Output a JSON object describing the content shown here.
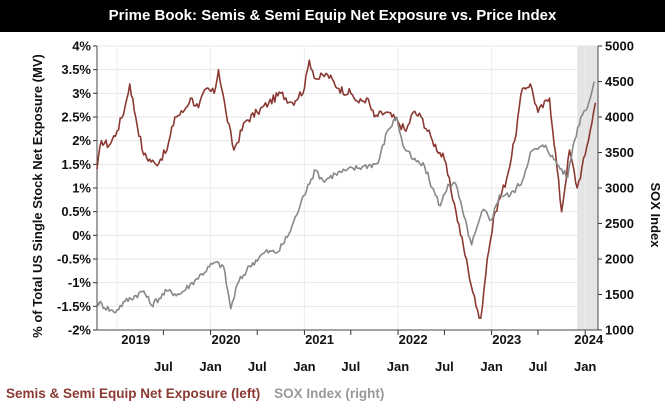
{
  "chart_data": {
    "type": "line",
    "title": "Prime Book: Semis & Semi Equip Net Exposure vs. Price Index",
    "ylabel_left": "% of Total US Single Stock Net Exposure (MV)",
    "ylabel_right": "SOX Index",
    "left_axis": {
      "min": -2,
      "max": 4,
      "ticks": [
        "-2%",
        "-1.5%",
        "-1%",
        "-0.5%",
        "0%",
        "0.5%",
        "1%",
        "1.5%",
        "2%",
        "2.5%",
        "3%",
        "3.5%",
        "4%"
      ]
    },
    "right_axis": {
      "min": 1000,
      "max": 5000,
      "ticks": [
        "1000",
        "1500",
        "2000",
        "2500",
        "3000",
        "3500",
        "4000",
        "4500",
        "5000"
      ]
    },
    "x_axis": {
      "start": "2018-10-15",
      "end": "2024-02-20",
      "months": [
        {
          "label": "Jul",
          "date": "2019-07-01"
        },
        {
          "label": "Jan",
          "date": "2020-01-01"
        },
        {
          "label": "Jul",
          "date": "2020-07-01"
        },
        {
          "label": "Jan",
          "date": "2021-01-01"
        },
        {
          "label": "Jul",
          "date": "2021-07-01"
        },
        {
          "label": "Jan",
          "date": "2022-01-01"
        },
        {
          "label": "Jul",
          "date": "2022-07-01"
        },
        {
          "label": "Jan",
          "date": "2023-01-01"
        },
        {
          "label": "Jul",
          "date": "2023-07-01"
        },
        {
          "label": "Jan",
          "date": "2024-01-01"
        }
      ],
      "years": [
        {
          "label": "2019",
          "date": "2019-03-15"
        },
        {
          "label": "2020",
          "date": "2020-03-01"
        },
        {
          "label": "2021",
          "date": "2021-03-01"
        },
        {
          "label": "2022",
          "date": "2022-03-01"
        },
        {
          "label": "2023",
          "date": "2023-03-01"
        },
        {
          "label": "2024",
          "date": "2024-01-15"
        }
      ]
    },
    "shaded_region": {
      "start": "2023-12-01",
      "end": "2024-02-20"
    },
    "grid": true,
    "legend_position": "bottom-left",
    "series": [
      {
        "name": "Semis & Semi Equip Net Exposure (left)",
        "axis": "left",
        "color": "#8b3a33",
        "points": [
          [
            "2018-10-15",
            1.4
          ],
          [
            "2018-11-01",
            2.0
          ],
          [
            "2018-12-01",
            1.9
          ],
          [
            "2019-01-01",
            2.2
          ],
          [
            "2019-02-01",
            2.7
          ],
          [
            "2019-02-20",
            3.2
          ],
          [
            "2019-03-15",
            2.5
          ],
          [
            "2019-04-15",
            1.7
          ],
          [
            "2019-06-01",
            1.5
          ],
          [
            "2019-07-15",
            1.8
          ],
          [
            "2019-08-15",
            2.5
          ],
          [
            "2019-09-15",
            2.6
          ],
          [
            "2019-10-15",
            2.9
          ],
          [
            "2019-11-15",
            2.7
          ],
          [
            "2019-12-15",
            3.1
          ],
          [
            "2020-01-15",
            3.0
          ],
          [
            "2020-02-01",
            3.5
          ],
          [
            "2020-03-01",
            2.6
          ],
          [
            "2020-04-01",
            1.8
          ],
          [
            "2020-05-15",
            2.4
          ],
          [
            "2020-07-01",
            2.6
          ],
          [
            "2020-08-15",
            2.8
          ],
          [
            "2020-10-01",
            3.0
          ],
          [
            "2020-11-15",
            2.8
          ],
          [
            "2021-01-01",
            3.1
          ],
          [
            "2021-01-20",
            3.7
          ],
          [
            "2021-02-15",
            3.3
          ],
          [
            "2021-04-01",
            3.4
          ],
          [
            "2021-05-15",
            3.1
          ],
          [
            "2021-07-01",
            3.0
          ],
          [
            "2021-08-01",
            2.8
          ],
          [
            "2021-09-01",
            2.9
          ],
          [
            "2021-10-01",
            2.5
          ],
          [
            "2021-11-15",
            2.6
          ],
          [
            "2022-01-01",
            2.4
          ],
          [
            "2022-02-01",
            2.2
          ],
          [
            "2022-03-01",
            2.6
          ],
          [
            "2022-04-01",
            2.5
          ],
          [
            "2022-05-15",
            2.0
          ],
          [
            "2022-07-01",
            1.6
          ],
          [
            "2022-08-15",
            0.5
          ],
          [
            "2022-10-01",
            -0.7
          ],
          [
            "2022-11-01",
            -1.5
          ],
          [
            "2022-11-20",
            -1.75
          ],
          [
            "2022-12-15",
            -0.5
          ],
          [
            "2023-01-15",
            0.5
          ],
          [
            "2023-03-01",
            1.2
          ],
          [
            "2023-04-01",
            2.0
          ],
          [
            "2023-05-01",
            3.1
          ],
          [
            "2023-06-01",
            3.2
          ],
          [
            "2023-07-01",
            2.6
          ],
          [
            "2023-08-15",
            2.9
          ],
          [
            "2023-10-01",
            0.5
          ],
          [
            "2023-11-01",
            1.8
          ],
          [
            "2023-12-01",
            1.0
          ],
          [
            "2024-01-01",
            1.7
          ],
          [
            "2024-01-20",
            2.2
          ],
          [
            "2024-02-10",
            2.8
          ]
        ]
      },
      {
        "name": "SOX Index (right)",
        "axis": "right",
        "color": "#888888",
        "points": [
          [
            "2018-10-15",
            1400
          ],
          [
            "2018-12-20",
            1250
          ],
          [
            "2019-02-01",
            1400
          ],
          [
            "2019-04-15",
            1550
          ],
          [
            "2019-05-15",
            1350
          ],
          [
            "2019-07-15",
            1550
          ],
          [
            "2019-09-01",
            1500
          ],
          [
            "2019-11-01",
            1700
          ],
          [
            "2020-01-15",
            1950
          ],
          [
            "2020-02-20",
            1900
          ],
          [
            "2020-03-20",
            1300
          ],
          [
            "2020-04-15",
            1650
          ],
          [
            "2020-06-01",
            1900
          ],
          [
            "2020-08-01",
            2100
          ],
          [
            "2020-09-20",
            2100
          ],
          [
            "2020-11-01",
            2350
          ],
          [
            "2020-12-15",
            2750
          ],
          [
            "2021-01-15",
            3050
          ],
          [
            "2021-02-15",
            3250
          ],
          [
            "2021-03-15",
            3100
          ],
          [
            "2021-05-01",
            3200
          ],
          [
            "2021-06-15",
            3250
          ],
          [
            "2021-08-15",
            3300
          ],
          [
            "2021-10-15",
            3350
          ],
          [
            "2021-11-20",
            3800
          ],
          [
            "2021-12-27",
            4000
          ],
          [
            "2022-01-20",
            3600
          ],
          [
            "2022-03-01",
            3400
          ],
          [
            "2022-04-15",
            3300
          ],
          [
            "2022-05-15",
            3000
          ],
          [
            "2022-06-15",
            2750
          ],
          [
            "2022-07-15",
            3050
          ],
          [
            "2022-08-15",
            3050
          ],
          [
            "2022-09-15",
            2600
          ],
          [
            "2022-10-15",
            2200
          ],
          [
            "2022-11-30",
            2700
          ],
          [
            "2022-12-31",
            2550
          ],
          [
            "2023-02-01",
            2900
          ],
          [
            "2023-03-15",
            2900
          ],
          [
            "2023-05-01",
            3100
          ],
          [
            "2023-06-01",
            3500
          ],
          [
            "2023-07-31",
            3600
          ],
          [
            "2023-09-01",
            3400
          ],
          [
            "2023-10-25",
            3150
          ],
          [
            "2023-11-15",
            3600
          ],
          [
            "2023-12-15",
            4000
          ],
          [
            "2024-01-15",
            4200
          ],
          [
            "2024-02-05",
            4500
          ]
        ]
      }
    ]
  },
  "legend": {
    "items": [
      {
        "label": "Semis & Semi Equip Net Exposure (left)",
        "color": "#8b3a33"
      },
      {
        "label": "SOX Index (right)",
        "color": "#999999"
      }
    ]
  }
}
